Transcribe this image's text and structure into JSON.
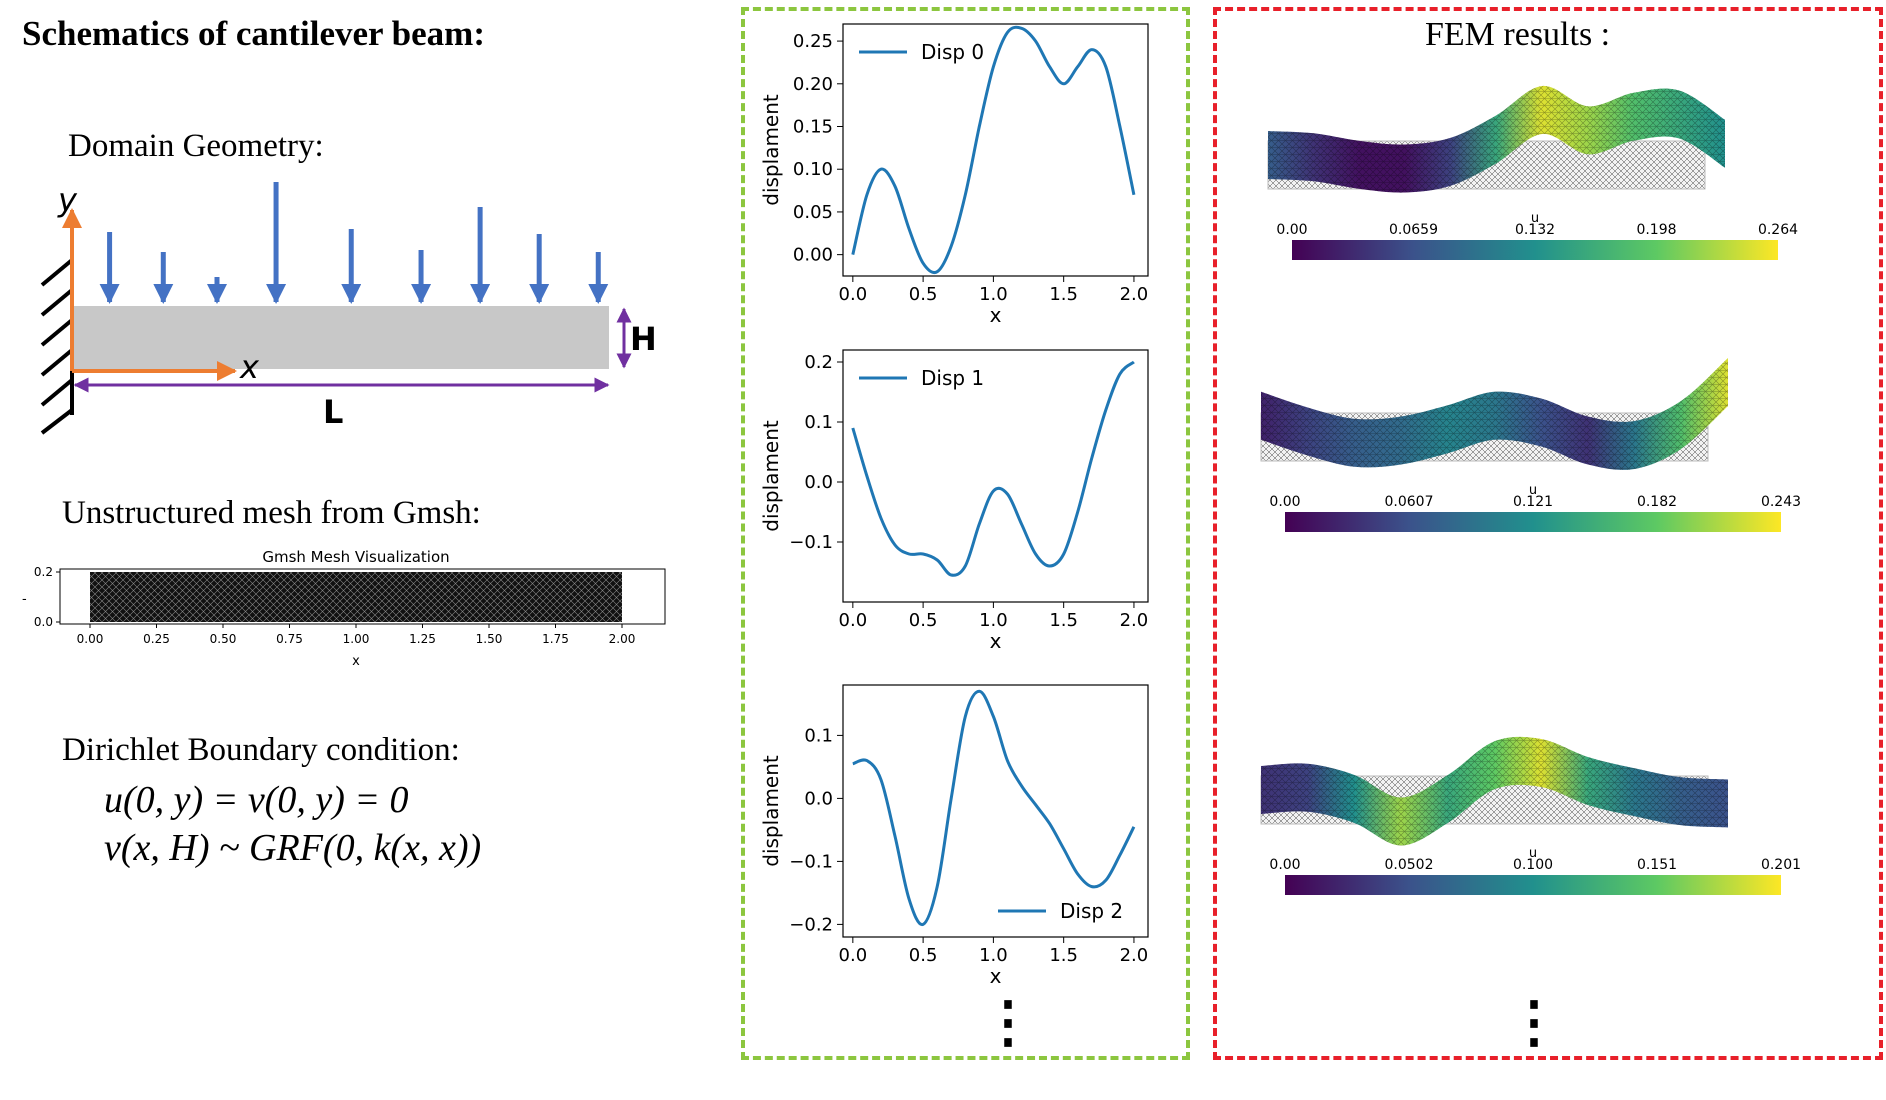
{
  "left": {
    "title": "Schematics of cantilever beam:",
    "geometry_title": "Domain Geometry:",
    "axis_x": "x",
    "axis_y": "y",
    "dim_H": "H",
    "dim_L": "L",
    "mesh_title": "Unstructured mesh from Gmsh:",
    "mesh_plot": {
      "title": "Gmsh Mesh Visualization",
      "x_ticks": [
        "0.00",
        "0.25",
        "0.50",
        "0.75",
        "1.00",
        "1.25",
        "1.50",
        "1.75",
        "2.00"
      ],
      "y_ticks": [
        "0.2",
        "0.0"
      ],
      "xlabel": "x",
      "ylabel": "-"
    },
    "bc_title": "Dirichlet Boundary condition:",
    "bc_eq1": "u(0, y) = v(0, y) = 0",
    "bc_eq2": "v(x, H) ~ GRF(0, k(x, x))"
  },
  "colors": {
    "arrow_blue": "#4472c4",
    "axis_orange": "#ed7d31",
    "dim_purple": "#7030a0",
    "beam_gray": "#c8c8c8",
    "line_blue": "#1f77b4",
    "panel_green": "#8cc63f",
    "panel_red": "#e8202a"
  },
  "load_arrows": [
    {
      "x": 0.07,
      "len": 70
    },
    {
      "x": 0.17,
      "len": 50
    },
    {
      "x": 0.27,
      "len": 25
    },
    {
      "x": 0.38,
      "len": 120
    },
    {
      "x": 0.52,
      "len": 73
    },
    {
      "x": 0.65,
      "len": 52
    },
    {
      "x": 0.76,
      "len": 95
    },
    {
      "x": 0.87,
      "len": 68
    },
    {
      "x": 0.98,
      "len": 50
    }
  ],
  "chart_data": [
    {
      "type": "line",
      "series": [
        {
          "name": "Disp 0",
          "x": [
            0.0,
            0.1,
            0.2,
            0.3,
            0.4,
            0.5,
            0.6,
            0.7,
            0.8,
            0.9,
            1.0,
            1.1,
            1.2,
            1.3,
            1.4,
            1.5,
            1.6,
            1.7,
            1.8,
            1.9,
            2.0
          ],
          "y": [
            0.0,
            0.07,
            0.1,
            0.08,
            0.03,
            -0.01,
            -0.02,
            0.01,
            0.07,
            0.15,
            0.22,
            0.26,
            0.265,
            0.25,
            0.22,
            0.2,
            0.22,
            0.24,
            0.22,
            0.15,
            0.07
          ]
        }
      ],
      "xlabel": "x",
      "ylabel": "displament",
      "xlim": [
        -0.07,
        2.1
      ],
      "ylim": [
        -0.025,
        0.27
      ],
      "x_ticks": [
        0.0,
        0.5,
        1.0,
        1.5,
        2.0
      ],
      "y_ticks": [
        0.0,
        0.05,
        0.1,
        0.15,
        0.2,
        0.25
      ],
      "x_tick_labels": [
        "0.0",
        "0.5",
        "1.0",
        "1.5",
        "2.0"
      ],
      "y_tick_labels": [
        "0.00",
        "0.05",
        "0.10",
        "0.15",
        "0.20",
        "0.25"
      ],
      "legend": "top-left"
    },
    {
      "type": "line",
      "series": [
        {
          "name": "Disp 1",
          "x": [
            0.0,
            0.1,
            0.2,
            0.3,
            0.4,
            0.5,
            0.6,
            0.7,
            0.8,
            0.9,
            1.0,
            1.1,
            1.2,
            1.3,
            1.4,
            1.5,
            1.6,
            1.7,
            1.8,
            1.9,
            2.0
          ],
          "y": [
            0.09,
            0.01,
            -0.06,
            -0.105,
            -0.12,
            -0.12,
            -0.13,
            -0.155,
            -0.14,
            -0.07,
            -0.015,
            -0.02,
            -0.07,
            -0.12,
            -0.14,
            -0.12,
            -0.05,
            0.04,
            0.12,
            0.18,
            0.2
          ]
        }
      ],
      "xlabel": "x",
      "ylabel": "displament",
      "xlim": [
        -0.07,
        2.1
      ],
      "ylim": [
        -0.2,
        0.22
      ],
      "x_ticks": [
        0.0,
        0.5,
        1.0,
        1.5,
        2.0
      ],
      "y_ticks": [
        -0.1,
        0.0,
        0.1,
        0.2
      ],
      "x_tick_labels": [
        "0.0",
        "0.5",
        "1.0",
        "1.5",
        "2.0"
      ],
      "y_tick_labels": [
        "−0.1",
        "0.0",
        "0.1",
        "0.2"
      ],
      "legend": "top-left"
    },
    {
      "type": "line",
      "series": [
        {
          "name": "Disp 2",
          "x": [
            0.0,
            0.1,
            0.2,
            0.3,
            0.4,
            0.5,
            0.6,
            0.7,
            0.8,
            0.9,
            1.0,
            1.1,
            1.2,
            1.3,
            1.4,
            1.5,
            1.6,
            1.7,
            1.8,
            1.9,
            2.0
          ],
          "y": [
            0.055,
            0.06,
            0.03,
            -0.06,
            -0.16,
            -0.2,
            -0.14,
            0.0,
            0.13,
            0.17,
            0.13,
            0.06,
            0.02,
            -0.01,
            -0.04,
            -0.08,
            -0.12,
            -0.14,
            -0.13,
            -0.09,
            -0.045
          ]
        }
      ],
      "xlabel": "x",
      "ylabel": "displament",
      "xlim": [
        -0.07,
        2.1
      ],
      "ylim": [
        -0.22,
        0.18
      ],
      "x_ticks": [
        0.0,
        0.5,
        1.0,
        1.5,
        2.0
      ],
      "y_ticks": [
        -0.2,
        -0.1,
        0.0,
        0.1
      ],
      "x_tick_labels": [
        "0.0",
        "0.5",
        "1.0",
        "1.5",
        "2.0"
      ],
      "y_tick_labels": [
        "−0.2",
        "−0.1",
        "0.0",
        "0.1"
      ],
      "legend": "bottom-right"
    }
  ],
  "fem": {
    "title": "FEM results :",
    "colorbar_label": "u",
    "colormap": [
      "#440154",
      "#3b528b",
      "#21908d",
      "#5dc963",
      "#fde725"
    ],
    "results": [
      {
        "ticks": [
          "0.00",
          "0.0659",
          "0.132",
          "0.198",
          "0.264"
        ],
        "shape": [
          0.0,
          -0.05,
          -0.22,
          -0.3,
          -0.15,
          0.35,
          1.0,
          0.55,
          0.85,
          0.9,
          0.25
        ],
        "color_stops": [
          0.3,
          0.15,
          0.05,
          0.05,
          0.2,
          0.6,
          0.95,
          0.85,
          0.7,
          0.6,
          0.5
        ]
      },
      {
        "ticks": [
          "0.00",
          "0.0607",
          "0.121",
          "0.182",
          "0.243"
        ],
        "shape": [
          0.25,
          -0.1,
          -0.35,
          -0.3,
          -0.05,
          0.25,
          0.1,
          -0.3,
          -0.4,
          0.05,
          1.0
        ],
        "color_stops": [
          0.1,
          0.2,
          0.3,
          0.35,
          0.45,
          0.4,
          0.25,
          0.15,
          0.4,
          0.7,
          0.95
        ]
      },
      {
        "ticks": [
          "0.00",
          "0.0502",
          "0.100",
          "0.151",
          "0.201"
        ],
        "shape": [
          0.0,
          0.05,
          -0.2,
          -0.7,
          -0.2,
          0.55,
          0.6,
          0.2,
          -0.05,
          -0.25,
          -0.3
        ],
        "color_stops": [
          0.15,
          0.2,
          0.5,
          0.85,
          0.6,
          0.75,
          0.95,
          0.6,
          0.4,
          0.3,
          0.25
        ]
      }
    ],
    "continuation": "⋮"
  },
  "middle_continuation": "⋮"
}
